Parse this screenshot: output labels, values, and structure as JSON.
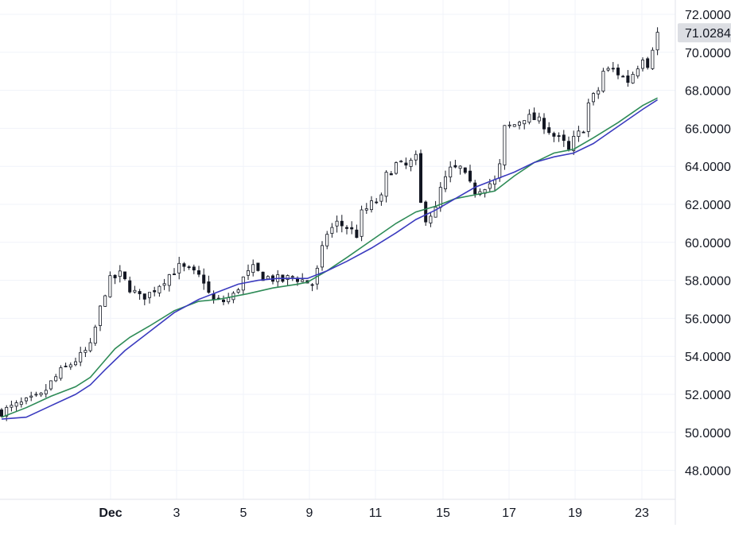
{
  "chart_data": {
    "type": "candlestick",
    "title": "",
    "xlabel": "",
    "ylabel": "",
    "ylim": [
      46.5,
      72.5
    ],
    "y_ticks": [
      "48.0000",
      "50.0000",
      "52.0000",
      "54.0000",
      "56.0000",
      "58.0000",
      "60.0000",
      "62.0000",
      "64.0000",
      "66.0000",
      "68.0000",
      "70.0000",
      "72.0000"
    ],
    "x_ticks": [
      "Dec",
      "3",
      "5",
      "9",
      "11",
      "15",
      "17",
      "19",
      "23"
    ],
    "last_price_label": "71.0284",
    "grid": true,
    "colors": {
      "candle": "#131722",
      "ma_green": "#2e8b57",
      "ma_blue": "#3b3bbf",
      "price_tag_bg": "#dcdee3",
      "grid": "#f0f3fa",
      "axis_text": "#131722"
    },
    "price_path": [
      [
        0,
        51.1
      ],
      [
        4,
        51.5
      ],
      [
        8,
        51.9
      ],
      [
        10,
        52.6
      ],
      [
        12,
        53.2
      ],
      [
        14,
        53.6
      ],
      [
        16,
        54.0
      ],
      [
        18,
        54.5
      ],
      [
        19,
        55.5
      ],
      [
        20,
        56.5
      ],
      [
        21,
        57.4
      ],
      [
        22,
        58.0
      ],
      [
        24,
        58.3
      ],
      [
        26,
        57.6
      ],
      [
        28,
        57.1
      ],
      [
        30,
        57.3
      ],
      [
        32,
        57.8
      ],
      [
        34,
        58.3
      ],
      [
        36,
        58.7
      ],
      [
        38,
        58.5
      ],
      [
        40,
        58.2
      ],
      [
        41,
        58.0
      ],
      [
        42,
        57.3
      ],
      [
        43,
        56.9
      ],
      [
        45,
        56.9
      ],
      [
        47,
        57.2
      ],
      [
        49,
        58.1
      ],
      [
        51,
        58.6
      ],
      [
        53,
        58.2
      ],
      [
        55,
        58.1
      ],
      [
        57,
        58.0
      ],
      [
        59,
        58.2
      ],
      [
        61,
        58.0
      ],
      [
        63,
        57.8
      ],
      [
        64,
        58.5
      ],
      [
        65,
        59.6
      ],
      [
        66,
        60.5
      ],
      [
        68,
        61.0
      ],
      [
        70,
        60.8
      ],
      [
        72,
        60.4
      ],
      [
        73,
        61.5
      ],
      [
        75,
        62.0
      ],
      [
        77,
        62.3
      ],
      [
        78,
        63.5
      ],
      [
        80,
        64.1
      ],
      [
        82,
        64.0
      ],
      [
        84,
        64.4
      ],
      [
        85,
        62.0
      ],
      [
        86,
        61.3
      ],
      [
        88,
        61.7
      ],
      [
        89,
        62.8
      ],
      [
        91,
        63.8
      ],
      [
        93,
        63.9
      ],
      [
        95,
        63.0
      ],
      [
        96,
        62.7
      ],
      [
        98,
        63.0
      ],
      [
        100,
        63.2
      ],
      [
        101,
        64.0
      ],
      [
        102,
        66.0
      ],
      [
        104,
        66.2
      ],
      [
        106,
        66.6
      ],
      [
        108,
        66.5
      ],
      [
        110,
        66.2
      ],
      [
        112,
        65.6
      ],
      [
        114,
        65.2
      ],
      [
        115,
        64.8
      ],
      [
        116,
        65.4
      ],
      [
        118,
        66.0
      ],
      [
        119,
        67.3
      ],
      [
        121,
        68.0
      ],
      [
        122,
        69.0
      ],
      [
        124,
        69.1
      ],
      [
        126,
        68.7
      ],
      [
        127,
        68.5
      ],
      [
        129,
        69.3
      ],
      [
        130,
        69.8
      ],
      [
        131,
        69.4
      ],
      [
        132,
        70.3
      ],
      [
        133,
        71.0
      ]
    ],
    "ma_green": [
      [
        0,
        50.8
      ],
      [
        5,
        51.3
      ],
      [
        10,
        51.9
      ],
      [
        15,
        52.4
      ],
      [
        18,
        52.9
      ],
      [
        20,
        53.5
      ],
      [
        23,
        54.4
      ],
      [
        26,
        55.0
      ],
      [
        30,
        55.6
      ],
      [
        35,
        56.4
      ],
      [
        40,
        56.9
      ],
      [
        44,
        57.0
      ],
      [
        50,
        57.3
      ],
      [
        55,
        57.6
      ],
      [
        60,
        57.8
      ],
      [
        62,
        57.9
      ],
      [
        66,
        58.5
      ],
      [
        70,
        59.2
      ],
      [
        75,
        60.1
      ],
      [
        80,
        61.0
      ],
      [
        84,
        61.6
      ],
      [
        88,
        61.9
      ],
      [
        92,
        62.3
      ],
      [
        96,
        62.5
      ],
      [
        100,
        62.7
      ],
      [
        104,
        63.5
      ],
      [
        108,
        64.2
      ],
      [
        112,
        64.7
      ],
      [
        116,
        64.9
      ],
      [
        120,
        65.5
      ],
      [
        125,
        66.3
      ],
      [
        130,
        67.2
      ],
      [
        133,
        67.6
      ]
    ],
    "ma_blue": [
      [
        0,
        50.7
      ],
      [
        5,
        50.8
      ],
      [
        10,
        51.4
      ],
      [
        15,
        52.0
      ],
      [
        18,
        52.5
      ],
      [
        21,
        53.3
      ],
      [
        25,
        54.3
      ],
      [
        30,
        55.3
      ],
      [
        35,
        56.3
      ],
      [
        40,
        57.0
      ],
      [
        44,
        57.4
      ],
      [
        48,
        57.8
      ],
      [
        52,
        58.0
      ],
      [
        56,
        58.1
      ],
      [
        60,
        58.1
      ],
      [
        62,
        58.1
      ],
      [
        66,
        58.5
      ],
      [
        70,
        59.0
      ],
      [
        75,
        59.7
      ],
      [
        80,
        60.5
      ],
      [
        84,
        61.2
      ],
      [
        88,
        61.7
      ],
      [
        92,
        62.3
      ],
      [
        96,
        62.9
      ],
      [
        100,
        63.3
      ],
      [
        104,
        63.7
      ],
      [
        108,
        64.2
      ],
      [
        112,
        64.5
      ],
      [
        116,
        64.7
      ],
      [
        120,
        65.2
      ],
      [
        125,
        66.1
      ],
      [
        130,
        67.0
      ],
      [
        133,
        67.5
      ]
    ]
  }
}
